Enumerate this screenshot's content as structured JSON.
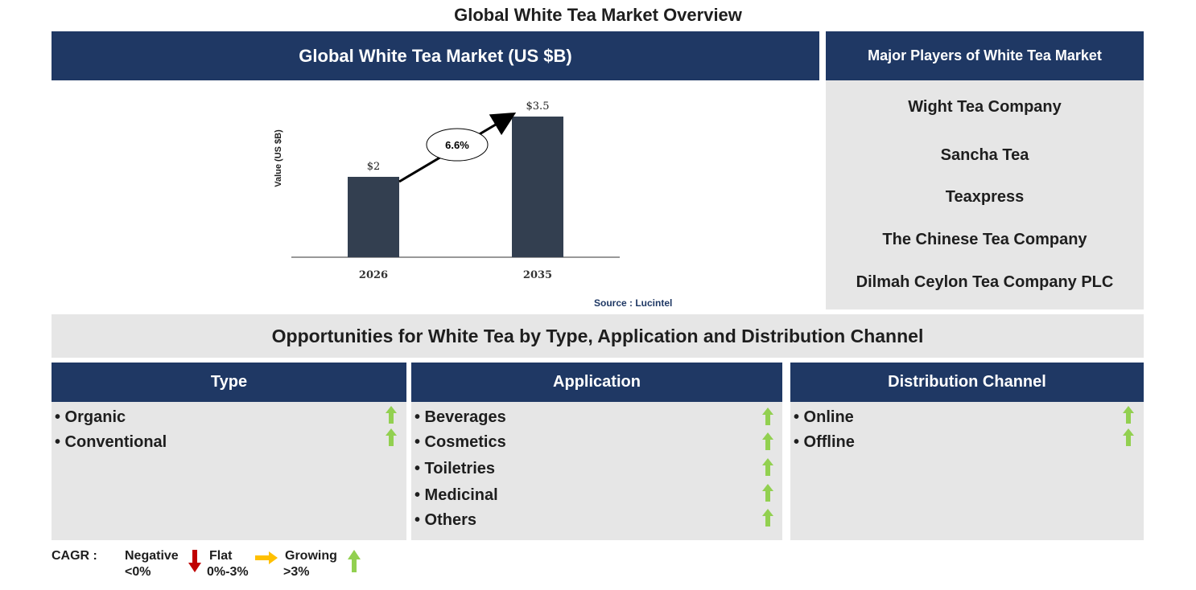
{
  "title": "Global White Tea Market Overview",
  "chart_header": "Global White Tea Market (US $B)",
  "chart_data": {
    "type": "bar",
    "categories": [
      "2026",
      "2035"
    ],
    "values": [
      2,
      3.5
    ],
    "value_labels": [
      "$2",
      "$3.5"
    ],
    "ylabel": "Value (US $B)",
    "cagr_label": "6.6%",
    "bar_color": "#333f50",
    "grid": false
  },
  "source": "Source : Lucintel",
  "players": {
    "header": "Major Players of White Tea Market",
    "items": [
      "Wight Tea Company",
      "Sancha Tea",
      "Teaxpress",
      "The Chinese Tea Company",
      "Dilmah Ceylon Tea Company PLC"
    ]
  },
  "opportunities_title": "Opportunities for White Tea by Type, Application and Distribution Channel",
  "segments": [
    {
      "header": "Type",
      "items": [
        "• Organic",
        "• Conventional"
      ]
    },
    {
      "header": "Application",
      "items": [
        "• Beverages",
        "• Cosmetics",
        "• Toiletries",
        "• Medicinal",
        "• Others"
      ]
    },
    {
      "header": "Distribution Channel",
      "items": [
        "• Online",
        "• Offline"
      ]
    }
  ],
  "legend": {
    "label": "CAGR :",
    "negative": {
      "name": "Negative",
      "range": "<0%"
    },
    "flat": {
      "name": "Flat",
      "range": "0%-3%"
    },
    "growing": {
      "name": "Growing",
      "range": ">3%"
    }
  },
  "colors": {
    "navy": "#1f3864",
    "panel_grey": "#e6e6e6",
    "growing_arrow": "#92d050",
    "negative_arrow": "#c00000",
    "flat_arrow": "#ffc000"
  }
}
